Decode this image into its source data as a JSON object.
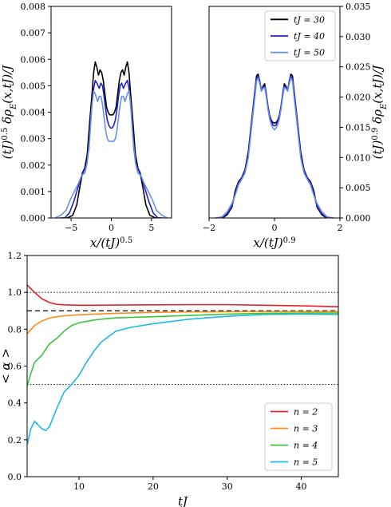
{
  "chart_data": [
    {
      "id": "top-left",
      "type": "line",
      "xlabel": "x/(tJ)^0.5",
      "ylabel": "(tJ)^0.5 δρ_E(x,tJ)/J",
      "xlim": [
        -7.5,
        7.5
      ],
      "ylim": [
        0,
        0.008
      ],
      "xticks": [
        "−5",
        "0",
        "5"
      ],
      "xtick_values": [
        -5,
        0,
        5
      ],
      "yticks": [
        "0.000",
        "0.001",
        "0.002",
        "0.003",
        "0.004",
        "0.005",
        "0.006",
        "0.007",
        "0.008"
      ],
      "ytick_values": [
        0,
        0.001,
        0.002,
        0.003,
        0.004,
        0.005,
        0.006,
        0.007,
        0.008
      ],
      "series": [
        {
          "name": "tJ = 30",
          "color": "#000000",
          "x": [
            -6.2,
            -5.5,
            -4.8,
            -4.3,
            -3.9,
            -3.6,
            -3.3,
            -3.0,
            -2.7,
            -2.4,
            -2.2,
            -2.0,
            -1.8,
            -1.6,
            -1.4,
            -1.2,
            -1.0,
            -0.8,
            -0.6,
            -0.4,
            -0.2,
            0.0,
            0.2,
            0.4,
            0.6,
            0.8,
            1.0,
            1.2,
            1.4,
            1.6,
            1.8,
            2.0,
            2.2,
            2.4,
            2.7,
            3.0,
            3.3,
            3.6,
            3.9,
            4.3,
            4.8,
            5.5,
            6.2
          ],
          "y": [
            0,
            0,
            0.0001,
            0.0005,
            0.0012,
            0.0017,
            0.0019,
            0.0024,
            0.0036,
            0.0047,
            0.0055,
            0.0059,
            0.0057,
            0.0054,
            0.0056,
            0.0055,
            0.0052,
            0.0047,
            0.0042,
            0.004,
            0.0039,
            0.0039,
            0.0039,
            0.004,
            0.0042,
            0.0047,
            0.0052,
            0.0055,
            0.0056,
            0.0054,
            0.0057,
            0.0059,
            0.0055,
            0.0047,
            0.0036,
            0.0024,
            0.0019,
            0.0017,
            0.0012,
            0.0005,
            0.0001,
            0,
            0
          ]
        },
        {
          "name": "tJ = 40",
          "color": "#1f1fcf",
          "x": [
            -6.5,
            -5.8,
            -5.2,
            -4.7,
            -4.2,
            -3.8,
            -3.4,
            -3.1,
            -2.8,
            -2.5,
            -2.2,
            -2.0,
            -1.8,
            -1.5,
            -1.3,
            -1.1,
            -0.9,
            -0.7,
            -0.5,
            -0.3,
            -0.1,
            0.1,
            0.3,
            0.5,
            0.7,
            0.9,
            1.1,
            1.3,
            1.5,
            1.8,
            2.0,
            2.2,
            2.5,
            2.8,
            3.1,
            3.4,
            3.8,
            4.2,
            4.7,
            5.2,
            5.8,
            6.5
          ],
          "y": [
            0,
            0,
            0.0002,
            0.0006,
            0.0011,
            0.0015,
            0.0018,
            0.002,
            0.0026,
            0.004,
            0.0049,
            0.0052,
            0.0051,
            0.0049,
            0.0051,
            0.005,
            0.0046,
            0.0041,
            0.0037,
            0.0035,
            0.0034,
            0.0034,
            0.0035,
            0.0037,
            0.0041,
            0.0046,
            0.005,
            0.0051,
            0.0049,
            0.0051,
            0.0052,
            0.0049,
            0.004,
            0.0026,
            0.002,
            0.0018,
            0.0015,
            0.0011,
            0.0006,
            0.0002,
            0,
            0
          ]
        },
        {
          "name": "tJ = 50",
          "color": "#6a8fe8",
          "x": [
            -7.0,
            -6.3,
            -5.6,
            -5.1,
            -4.6,
            -4.1,
            -3.7,
            -3.3,
            -3.0,
            -2.7,
            -2.4,
            -2.2,
            -2.0,
            -1.7,
            -1.5,
            -1.3,
            -1.1,
            -0.9,
            -0.7,
            -0.5,
            -0.3,
            -0.1,
            0.1,
            0.3,
            0.5,
            0.7,
            0.9,
            1.1,
            1.3,
            1.5,
            1.7,
            2.0,
            2.2,
            2.4,
            2.7,
            3.0,
            3.3,
            3.7,
            4.1,
            4.6,
            5.1,
            5.6,
            6.3,
            7.0
          ],
          "y": [
            0,
            0.0001,
            0.0003,
            0.0007,
            0.001,
            0.0013,
            0.0016,
            0.0017,
            0.0021,
            0.003,
            0.0043,
            0.0048,
            0.0047,
            0.0044,
            0.0046,
            0.0046,
            0.0043,
            0.0038,
            0.0033,
            0.003,
            0.0029,
            0.0029,
            0.0029,
            0.0029,
            0.003,
            0.0033,
            0.0038,
            0.0043,
            0.0046,
            0.0046,
            0.0044,
            0.0047,
            0.0048,
            0.0043,
            0.003,
            0.0021,
            0.0017,
            0.0016,
            0.0013,
            0.001,
            0.0007,
            0.0003,
            0.0001,
            0
          ]
        }
      ]
    },
    {
      "id": "top-right",
      "type": "line",
      "xlabel": "x/(tJ)^0.9",
      "ylabel": "(tJ)^0.9 δρ_E(x,tJ)/J",
      "xlim": [
        -2,
        2
      ],
      "ylim": [
        0,
        0.035
      ],
      "xticks": [
        "−2",
        "0",
        "2"
      ],
      "xtick_values": [
        -2,
        0,
        2
      ],
      "yticks": [
        "0.000",
        "0.005",
        "0.010",
        "0.015",
        "0.020",
        "0.025",
        "0.030",
        "0.035"
      ],
      "ytick_values": [
        0,
        0.005,
        0.01,
        0.015,
        0.02,
        0.025,
        0.03,
        0.035
      ],
      "legend_position": "top-right",
      "series": [
        {
          "name": "tJ = 30",
          "color": "#000000",
          "x": [
            -1.8,
            -1.6,
            -1.45,
            -1.3,
            -1.2,
            -1.1,
            -1.0,
            -0.9,
            -0.8,
            -0.7,
            -0.6,
            -0.55,
            -0.5,
            -0.45,
            -0.4,
            -0.35,
            -0.3,
            -0.25,
            -0.2,
            -0.15,
            -0.1,
            -0.05,
            0.0,
            0.05,
            0.1,
            0.15,
            0.2,
            0.25,
            0.3,
            0.35,
            0.4,
            0.45,
            0.5,
            0.55,
            0.6,
            0.7,
            0.8,
            0.9,
            1.0,
            1.1,
            1.2,
            1.3,
            1.45,
            1.6,
            1.8
          ],
          "y": [
            0,
            0,
            0.0005,
            0.0018,
            0.0045,
            0.006,
            0.0067,
            0.008,
            0.011,
            0.016,
            0.021,
            0.0235,
            0.0238,
            0.0226,
            0.021,
            0.0218,
            0.0222,
            0.0205,
            0.0185,
            0.017,
            0.0162,
            0.0158,
            0.0157,
            0.0158,
            0.0162,
            0.017,
            0.0185,
            0.0205,
            0.0222,
            0.0218,
            0.021,
            0.0226,
            0.0238,
            0.0235,
            0.021,
            0.016,
            0.011,
            0.008,
            0.0067,
            0.006,
            0.0045,
            0.0018,
            0.0005,
            0,
            0
          ]
        },
        {
          "name": "tJ = 40",
          "color": "#1f1fcf",
          "x": [
            -1.8,
            -1.6,
            -1.45,
            -1.3,
            -1.2,
            -1.1,
            -1.0,
            -0.9,
            -0.8,
            -0.7,
            -0.6,
            -0.55,
            -0.5,
            -0.45,
            -0.4,
            -0.35,
            -0.3,
            -0.25,
            -0.2,
            -0.15,
            -0.1,
            -0.05,
            0.0,
            0.05,
            0.1,
            0.15,
            0.2,
            0.25,
            0.3,
            0.35,
            0.4,
            0.45,
            0.5,
            0.55,
            0.6,
            0.7,
            0.8,
            0.9,
            1.0,
            1.1,
            1.2,
            1.3,
            1.45,
            1.6,
            1.8
          ],
          "y": [
            0,
            0.0001,
            0.0007,
            0.002,
            0.004,
            0.0058,
            0.0066,
            0.0078,
            0.0105,
            0.0158,
            0.0208,
            0.023,
            0.0235,
            0.0224,
            0.0212,
            0.0216,
            0.0218,
            0.0203,
            0.0183,
            0.0168,
            0.016,
            0.0154,
            0.0152,
            0.0154,
            0.016,
            0.0168,
            0.0183,
            0.0203,
            0.0218,
            0.0216,
            0.0212,
            0.0224,
            0.0235,
            0.023,
            0.0208,
            0.0158,
            0.0105,
            0.0078,
            0.0066,
            0.0058,
            0.004,
            0.002,
            0.0007,
            0.0001,
            0
          ]
        },
        {
          "name": "tJ = 50",
          "color": "#6a8fe8",
          "x": [
            -1.8,
            -1.6,
            -1.45,
            -1.3,
            -1.2,
            -1.1,
            -1.0,
            -0.9,
            -0.8,
            -0.7,
            -0.6,
            -0.55,
            -0.5,
            -0.45,
            -0.4,
            -0.35,
            -0.3,
            -0.25,
            -0.2,
            -0.15,
            -0.1,
            -0.05,
            0.0,
            0.05,
            0.1,
            0.15,
            0.2,
            0.25,
            0.3,
            0.35,
            0.4,
            0.45,
            0.5,
            0.55,
            0.6,
            0.7,
            0.8,
            0.9,
            1.0,
            1.1,
            1.2,
            1.3,
            1.45,
            1.6,
            1.8
          ],
          "y": [
            0,
            0.0002,
            0.001,
            0.0024,
            0.0038,
            0.0055,
            0.0064,
            0.0075,
            0.01,
            0.015,
            0.02,
            0.0226,
            0.0232,
            0.0222,
            0.021,
            0.0214,
            0.0216,
            0.02,
            0.018,
            0.0164,
            0.0155,
            0.0149,
            0.0146,
            0.0149,
            0.0155,
            0.0164,
            0.018,
            0.02,
            0.0216,
            0.0214,
            0.021,
            0.0222,
            0.0232,
            0.0226,
            0.02,
            0.015,
            0.01,
            0.0075,
            0.0064,
            0.0055,
            0.0038,
            0.0024,
            0.001,
            0.0002,
            0
          ]
        }
      ]
    },
    {
      "id": "bottom",
      "type": "line",
      "xlabel": "tJ",
      "ylabel": "< α >",
      "xlim": [
        3,
        45
      ],
      "ylim": [
        0,
        1.2
      ],
      "xticks": [
        "10",
        "20",
        "30",
        "40"
      ],
      "xtick_values": [
        10,
        20,
        30,
        40
      ],
      "yticks": [
        "0.0",
        "0.2",
        "0.4",
        "0.6",
        "0.8",
        "1.0",
        "1.2"
      ],
      "ytick_values": [
        0,
        0.2,
        0.4,
        0.6,
        0.8,
        1.0,
        1.2
      ],
      "legend_position": "bottom-right",
      "reference_lines": [
        {
          "y": 1.0,
          "style": "dotted"
        },
        {
          "y": 0.9,
          "style": "dashed"
        },
        {
          "y": 0.5,
          "style": "dotted"
        }
      ],
      "series": [
        {
          "name": "n = 2",
          "color": "#e8202a",
          "x": [
            3,
            4,
            5,
            6,
            7,
            8,
            10,
            12,
            15,
            20,
            25,
            30,
            35,
            40,
            45
          ],
          "y": [
            1.04,
            1.0,
            0.965,
            0.945,
            0.935,
            0.932,
            0.93,
            0.93,
            0.931,
            0.932,
            0.933,
            0.933,
            0.93,
            0.927,
            0.922
          ]
        },
        {
          "name": "n = 3",
          "color": "#ff8c1a",
          "x": [
            3,
            4,
            5,
            6,
            7,
            8,
            10,
            12,
            15,
            20,
            25,
            30,
            35,
            40,
            45
          ],
          "y": [
            0.775,
            0.82,
            0.845,
            0.86,
            0.868,
            0.873,
            0.878,
            0.882,
            0.886,
            0.891,
            0.894,
            0.895,
            0.896,
            0.896,
            0.896
          ]
        },
        {
          "name": "n = 4",
          "color": "#3cc43c",
          "x": [
            3,
            3.5,
            4,
            5,
            6,
            7,
            8,
            9,
            10,
            12,
            15,
            20,
            25,
            30,
            35,
            40,
            45
          ],
          "y": [
            0.49,
            0.56,
            0.62,
            0.66,
            0.72,
            0.75,
            0.79,
            0.82,
            0.835,
            0.85,
            0.862,
            0.868,
            0.875,
            0.882,
            0.886,
            0.888,
            0.888
          ]
        },
        {
          "name": "n = 5",
          "color": "#1ab8e8",
          "x": [
            3,
            3.5,
            4,
            4.5,
            5,
            5.5,
            6,
            7,
            8,
            9,
            10,
            11,
            12,
            13,
            14,
            15,
            17,
            20,
            25,
            30,
            35,
            40,
            45
          ],
          "y": [
            0.17,
            0.26,
            0.3,
            0.28,
            0.26,
            0.25,
            0.27,
            0.37,
            0.46,
            0.5,
            0.55,
            0.62,
            0.68,
            0.73,
            0.76,
            0.79,
            0.81,
            0.83,
            0.855,
            0.87,
            0.88,
            0.882,
            0.88
          ]
        }
      ]
    }
  ]
}
